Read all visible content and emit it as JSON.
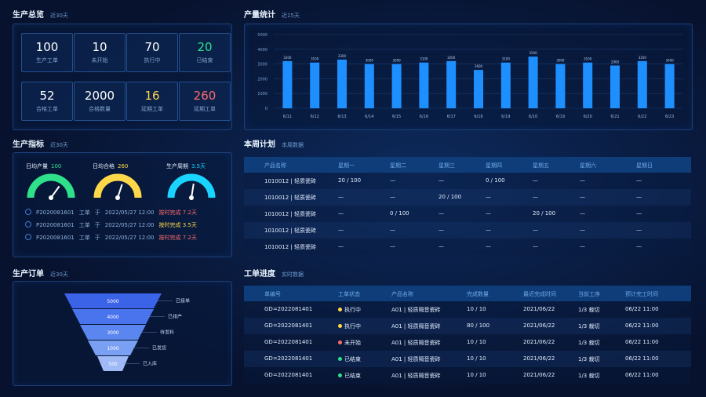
{
  "colors": {
    "accent": "#1e8fff",
    "yellow": "#ffd84a",
    "green": "#2ee08a",
    "red": "#ff6b6b",
    "cyan": "#19d4ff"
  },
  "overview": {
    "title": "生产总览",
    "subtitle": "近30天",
    "stats": [
      {
        "value": "100",
        "label": "生产工单",
        "color": "#ffffff"
      },
      {
        "value": "10",
        "label": "未开始",
        "color": "#ffffff"
      },
      {
        "value": "70",
        "label": "执行中",
        "color": "#ffffff"
      },
      {
        "value": "20",
        "label": "已结束",
        "color": "#2ee08a"
      },
      {
        "value": "52",
        "label": "合格工单",
        "color": "#ffffff"
      },
      {
        "value": "2000",
        "label": "合格数量",
        "color": "#ffffff"
      },
      {
        "value": "16",
        "label": "延期工单",
        "color": "#ffd84a"
      },
      {
        "value": "260",
        "label": "延期工单",
        "color": "#ff6b6b"
      }
    ]
  },
  "indicators": {
    "title": "生产指标",
    "subtitle": "近30天",
    "gauges": [
      {
        "label": "日均产量",
        "value": "100",
        "color": "#2ee08a",
        "level": 0.7
      },
      {
        "label": "日均合格",
        "value": "260",
        "color": "#ffd84a",
        "level": 0.6
      },
      {
        "label": "生产周期",
        "value": "3.5天",
        "color": "#19d4ff",
        "level": 0.55
      }
    ],
    "rows": [
      {
        "code": "P2020081601",
        "a": "工单",
        "b": "于",
        "date": "2022/05/27 12:00",
        "status": "按时完成 7.2天",
        "color": "#ff6b6b"
      },
      {
        "code": "P2020081601",
        "a": "工单",
        "b": "于",
        "date": "2022/05/27 12:00",
        "status": "按时完成 3.5天",
        "color": "#ffd84a"
      },
      {
        "code": "P2020081601",
        "a": "工单",
        "b": "于",
        "date": "2022/05/27 12:00",
        "status": "按时完成 7.2天",
        "color": "#ff6b6b"
      }
    ]
  },
  "orders": {
    "title": "生产订单",
    "subtitle": "近30天",
    "funnel": [
      {
        "value": "5000",
        "label": "已接单"
      },
      {
        "value": "4000",
        "label": "已排产"
      },
      {
        "value": "3000",
        "label": "待发料"
      },
      {
        "value": "1000",
        "label": "已发货"
      },
      {
        "value": "500",
        "label": "已入库"
      }
    ]
  },
  "output": {
    "title": "产量统计",
    "subtitle": "近15天"
  },
  "chart_data": {
    "type": "bar",
    "categories": [
      "6/11",
      "6/12",
      "6/13",
      "6/14",
      "6/15",
      "6/16",
      "6/17",
      "6/18",
      "6/19",
      "6/10",
      "6/19",
      "6/20",
      "6/21",
      "6/22",
      "6/23"
    ],
    "values": [
      3200,
      3100,
      3300,
      3000,
      3000,
      3100,
      3200,
      2600,
      3100,
      3500,
      3000,
      3100,
      2900,
      3200,
      3000
    ],
    "ylim": [
      0,
      5000
    ],
    "yticks": [
      "0",
      "1000",
      "2000",
      "3000",
      "4000",
      "5000"
    ],
    "grid": true
  },
  "plan": {
    "title": "本周计划",
    "subtitle": "本周数据",
    "headers": [
      "产品名称",
      "星期一",
      "星期二",
      "星期三",
      "星期四",
      "星期五",
      "星期六",
      "星期日"
    ],
    "rows": [
      [
        "1010012 | 轻质瓷砖",
        "20 / 100",
        "—",
        "—",
        "0 / 100",
        "—",
        "—",
        "—"
      ],
      [
        "1010012 | 轻质瓷砖",
        "—",
        "—",
        "20 / 100",
        "—",
        "—",
        "—",
        "—"
      ],
      [
        "1010012 | 轻质瓷砖",
        "—",
        "0 / 100",
        "—",
        "—",
        "20 / 100",
        "—",
        "—"
      ],
      [
        "1010012 | 轻质瓷砖",
        "—",
        "—",
        "—",
        "—",
        "—",
        "—",
        "—"
      ],
      [
        "1010012 | 轻质瓷砖",
        "—",
        "—",
        "—",
        "—",
        "—",
        "—",
        "—"
      ]
    ]
  },
  "progress": {
    "title": "工单进度",
    "subtitle": "实时数据",
    "headers": [
      "单编号",
      "工单状态",
      "产品名称",
      "完成数量",
      "最近完成时间",
      "当前工序",
      "预计完工时间"
    ],
    "rows": [
      [
        "GD=2022081401",
        "执行中",
        "A01 | 轻质隔音瓷砖",
        "10 / 10",
        "2021/06/22",
        "1/3 裁切",
        "06/22 11:00",
        "#ffd84a"
      ],
      [
        "GD=2022081401",
        "执行中",
        "A01 | 轻质隔音瓷砖",
        "80 / 100",
        "2021/06/22",
        "1/3 裁切",
        "06/22 11:00",
        "#ffd84a"
      ],
      [
        "GD=2022081401",
        "未开始",
        "A01 | 轻质隔音瓷砖",
        "10 / 10",
        "2021/06/22",
        "1/3 裁切",
        "06/22 11:00",
        "#ff6b6b"
      ],
      [
        "GD=2022081401",
        "已结束",
        "A01 | 轻质隔音瓷砖",
        "10 / 10",
        "2021/06/22",
        "1/3 裁切",
        "06/22 11:00",
        "#2ee08a"
      ],
      [
        "GD=2022081401",
        "已结束",
        "A01 | 轻质隔音瓷砖",
        "10 / 10",
        "2021/06/22",
        "1/3 裁切",
        "06/22 11:00",
        "#2ee08a"
      ]
    ]
  }
}
